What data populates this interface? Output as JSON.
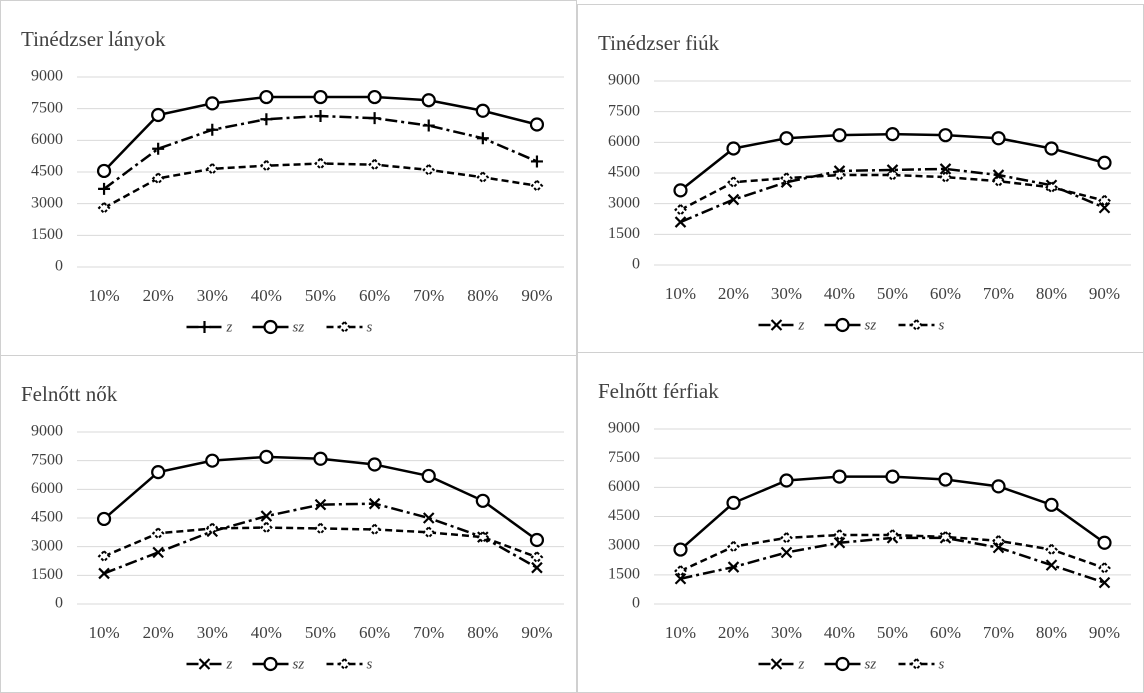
{
  "chart_data": [
    {
      "type": "line",
      "title": "Tinédzser lányok",
      "categories": [
        "10%",
        "20%",
        "30%",
        "40%",
        "50%",
        "60%",
        "70%",
        "80%",
        "90%"
      ],
      "series": [
        {
          "name": "z",
          "color": "#000000",
          "marker": "plus",
          "dash": "dash-dot",
          "values": [
            3700,
            5600,
            6500,
            7000,
            7150,
            7050,
            6700,
            6100,
            5000
          ]
        },
        {
          "name": "sz",
          "color": "#000000",
          "marker": "circle",
          "dash": "solid",
          "values": [
            4550,
            7200,
            7750,
            8050,
            8050,
            8050,
            7900,
            7400,
            6750
          ]
        },
        {
          "name": "s",
          "color": "#000000",
          "marker": "diamond",
          "dash": "dash",
          "values": [
            2800,
            4200,
            4650,
            4800,
            4900,
            4850,
            4600,
            4250,
            3850
          ]
        }
      ],
      "ylim": [
        0,
        9000
      ],
      "yticks": [
        0,
        1500,
        3000,
        4500,
        6000,
        7500,
        9000
      ],
      "grid": true,
      "legend": "bottom"
    },
    {
      "type": "line",
      "title": "Tinédzser fiúk",
      "categories": [
        "10%",
        "20%",
        "30%",
        "40%",
        "50%",
        "60%",
        "70%",
        "80%",
        "90%"
      ],
      "series": [
        {
          "name": "z",
          "color": "#000000",
          "marker": "cross",
          "dash": "dash-dot",
          "values": [
            2100,
            3200,
            4050,
            4600,
            4650,
            4700,
            4400,
            3900,
            2800
          ]
        },
        {
          "name": "sz",
          "color": "#000000",
          "marker": "circle",
          "dash": "solid",
          "values": [
            3650,
            5700,
            6200,
            6350,
            6400,
            6350,
            6200,
            5700,
            5000
          ]
        },
        {
          "name": "s",
          "color": "#000000",
          "marker": "diamond",
          "dash": "dash",
          "values": [
            2700,
            4050,
            4250,
            4400,
            4400,
            4300,
            4100,
            3800,
            3150
          ]
        }
      ],
      "ylim": [
        0,
        9000
      ],
      "yticks": [
        0,
        1500,
        3000,
        4500,
        6000,
        7500,
        9000
      ],
      "grid": true,
      "legend": "bottom"
    },
    {
      "type": "line",
      "title": "Felnőtt nők",
      "categories": [
        "10%",
        "20%",
        "30%",
        "40%",
        "50%",
        "60%",
        "70%",
        "80%",
        "90%"
      ],
      "series": [
        {
          "name": "z",
          "color": "#000000",
          "marker": "cross",
          "dash": "dash-dot",
          "values": [
            1600,
            2700,
            3800,
            4600,
            5200,
            5250,
            4500,
            3500,
            1900
          ]
        },
        {
          "name": "sz",
          "color": "#000000",
          "marker": "circle",
          "dash": "solid",
          "values": [
            4450,
            6900,
            7500,
            7700,
            7600,
            7300,
            6700,
            5400,
            3350
          ]
        },
        {
          "name": "s",
          "color": "#000000",
          "marker": "diamond",
          "dash": "dash",
          "values": [
            2500,
            3700,
            3950,
            4000,
            3950,
            3900,
            3750,
            3500,
            2450
          ]
        }
      ],
      "ylim": [
        0,
        9000
      ],
      "yticks": [
        0,
        1500,
        3000,
        4500,
        6000,
        7500,
        9000
      ],
      "grid": true,
      "legend": "bottom"
    },
    {
      "type": "line",
      "title": "Felnőtt férfiak",
      "categories": [
        "10%",
        "20%",
        "30%",
        "40%",
        "50%",
        "60%",
        "70%",
        "80%",
        "90%"
      ],
      "series": [
        {
          "name": "z",
          "color": "#000000",
          "marker": "cross",
          "dash": "dash-dot",
          "values": [
            1300,
            1900,
            2650,
            3150,
            3400,
            3400,
            2900,
            2000,
            1100
          ]
        },
        {
          "name": "sz",
          "color": "#000000",
          "marker": "circle",
          "dash": "solid",
          "values": [
            2800,
            5200,
            6350,
            6550,
            6550,
            6400,
            6050,
            5100,
            3150
          ]
        },
        {
          "name": "s",
          "color": "#000000",
          "marker": "diamond",
          "dash": "dash",
          "values": [
            1700,
            2950,
            3400,
            3550,
            3550,
            3450,
            3250,
            2800,
            1850
          ]
        }
      ],
      "ylim": [
        0,
        9000
      ],
      "yticks": [
        0,
        1500,
        3000,
        4500,
        6000,
        7500,
        9000
      ],
      "grid": true,
      "legend": "bottom"
    }
  ]
}
